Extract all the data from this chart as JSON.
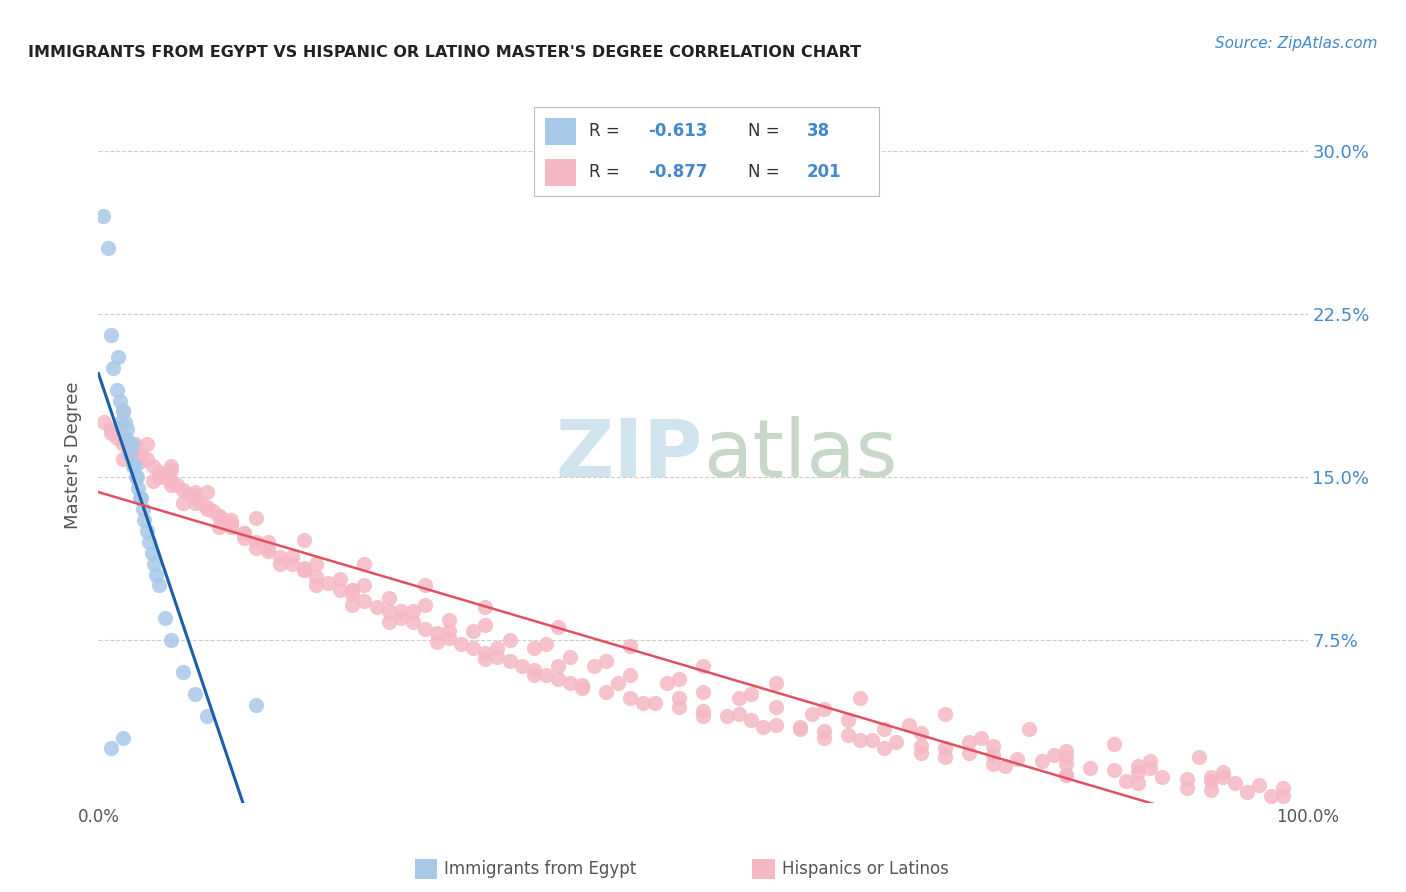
{
  "title": "IMMIGRANTS FROM EGYPT VS HISPANIC OR LATINO MASTER'S DEGREE CORRELATION CHART",
  "source": "Source: ZipAtlas.com",
  "ylabel": "Master's Degree",
  "xlim": [
    0.0,
    1.0
  ],
  "ylim": [
    0.0,
    0.32
  ],
  "color_blue": "#A8C8E8",
  "color_pink": "#F5B8C4",
  "color_blue_line": "#1A5FA8",
  "color_pink_line": "#E05060",
  "color_tick": "#4488CC",
  "background_color": "#FFFFFF",
  "grid_color": "#CCCCCC",
  "title_color": "#222222",
  "watermark_color": "#D0E4F0",
  "egypt_x": [
    0.004,
    0.008,
    0.01,
    0.012,
    0.015,
    0.016,
    0.018,
    0.019,
    0.02,
    0.022,
    0.023,
    0.024,
    0.025,
    0.026,
    0.028,
    0.029,
    0.03,
    0.031,
    0.032,
    0.033,
    0.034,
    0.035,
    0.037,
    0.038,
    0.04,
    0.042,
    0.044,
    0.046,
    0.048,
    0.05,
    0.055,
    0.06,
    0.07,
    0.08,
    0.09,
    0.01,
    0.02,
    0.13
  ],
  "egypt_y": [
    0.27,
    0.255,
    0.215,
    0.2,
    0.19,
    0.205,
    0.185,
    0.175,
    0.18,
    0.175,
    0.168,
    0.172,
    0.165,
    0.16,
    0.165,
    0.155,
    0.155,
    0.15,
    0.15,
    0.145,
    0.14,
    0.14,
    0.135,
    0.13,
    0.125,
    0.12,
    0.115,
    0.11,
    0.105,
    0.1,
    0.085,
    0.075,
    0.06,
    0.05,
    0.04,
    0.025,
    0.03,
    0.045
  ],
  "hispanic_x": [
    0.005,
    0.01,
    0.015,
    0.02,
    0.025,
    0.03,
    0.035,
    0.04,
    0.045,
    0.05,
    0.055,
    0.06,
    0.065,
    0.07,
    0.075,
    0.08,
    0.085,
    0.09,
    0.095,
    0.1,
    0.105,
    0.11,
    0.12,
    0.13,
    0.14,
    0.15,
    0.16,
    0.17,
    0.18,
    0.19,
    0.2,
    0.21,
    0.22,
    0.23,
    0.24,
    0.25,
    0.26,
    0.27,
    0.28,
    0.29,
    0.3,
    0.31,
    0.32,
    0.33,
    0.34,
    0.35,
    0.36,
    0.37,
    0.38,
    0.39,
    0.4,
    0.42,
    0.44,
    0.46,
    0.48,
    0.5,
    0.52,
    0.54,
    0.56,
    0.58,
    0.6,
    0.62,
    0.64,
    0.66,
    0.68,
    0.7,
    0.72,
    0.74,
    0.76,
    0.78,
    0.8,
    0.82,
    0.84,
    0.86,
    0.88,
    0.9,
    0.92,
    0.94,
    0.96,
    0.98,
    0.02,
    0.04,
    0.06,
    0.08,
    0.1,
    0.12,
    0.15,
    0.18,
    0.21,
    0.24,
    0.28,
    0.32,
    0.36,
    0.4,
    0.45,
    0.5,
    0.55,
    0.6,
    0.65,
    0.7,
    0.75,
    0.8,
    0.85,
    0.9,
    0.95,
    0.98,
    0.01,
    0.03,
    0.05,
    0.08,
    0.11,
    0.14,
    0.17,
    0.21,
    0.25,
    0.29,
    0.33,
    0.38,
    0.43,
    0.48,
    0.53,
    0.58,
    0.63,
    0.68,
    0.74,
    0.8,
    0.86,
    0.92,
    0.97,
    0.015,
    0.035,
    0.06,
    0.09,
    0.12,
    0.16,
    0.2,
    0.24,
    0.29,
    0.34,
    0.39,
    0.44,
    0.5,
    0.56,
    0.62,
    0.68,
    0.74,
    0.8,
    0.87,
    0.93,
    0.025,
    0.05,
    0.08,
    0.11,
    0.14,
    0.18,
    0.22,
    0.27,
    0.32,
    0.37,
    0.42,
    0.48,
    0.54,
    0.6,
    0.67,
    0.73,
    0.8,
    0.87,
    0.93,
    0.02,
    0.045,
    0.07,
    0.1,
    0.13,
    0.17,
    0.21,
    0.26,
    0.31,
    0.36,
    0.41,
    0.47,
    0.53,
    0.59,
    0.65,
    0.72,
    0.79,
    0.86,
    0.92,
    0.03,
    0.06,
    0.09,
    0.13,
    0.17,
    0.22,
    0.27,
    0.32,
    0.38,
    0.44,
    0.5,
    0.56,
    0.63,
    0.7,
    0.77,
    0.84,
    0.91
  ],
  "hispanic_y": [
    0.175,
    0.17,
    0.17,
    0.165,
    0.165,
    0.16,
    0.16,
    0.158,
    0.155,
    0.152,
    0.15,
    0.148,
    0.146,
    0.144,
    0.142,
    0.14,
    0.138,
    0.136,
    0.134,
    0.132,
    0.13,
    0.128,
    0.124,
    0.12,
    0.116,
    0.113,
    0.11,
    0.107,
    0.104,
    0.101,
    0.098,
    0.096,
    0.093,
    0.09,
    0.088,
    0.085,
    0.083,
    0.08,
    0.078,
    0.076,
    0.073,
    0.071,
    0.069,
    0.067,
    0.065,
    0.063,
    0.061,
    0.059,
    0.057,
    0.055,
    0.054,
    0.051,
    0.048,
    0.046,
    0.044,
    0.042,
    0.04,
    0.038,
    0.036,
    0.034,
    0.033,
    0.031,
    0.029,
    0.028,
    0.026,
    0.025,
    0.023,
    0.022,
    0.02,
    0.019,
    0.018,
    0.016,
    0.015,
    0.014,
    0.012,
    0.011,
    0.01,
    0.009,
    0.008,
    0.007,
    0.18,
    0.165,
    0.155,
    0.143,
    0.132,
    0.122,
    0.11,
    0.1,
    0.091,
    0.083,
    0.074,
    0.066,
    0.059,
    0.053,
    0.046,
    0.04,
    0.035,
    0.03,
    0.025,
    0.021,
    0.017,
    0.013,
    0.01,
    0.007,
    0.005,
    0.003,
    0.172,
    0.16,
    0.15,
    0.138,
    0.127,
    0.117,
    0.108,
    0.098,
    0.088,
    0.079,
    0.071,
    0.063,
    0.055,
    0.048,
    0.041,
    0.035,
    0.029,
    0.023,
    0.018,
    0.013,
    0.009,
    0.006,
    0.003,
    0.168,
    0.157,
    0.146,
    0.135,
    0.124,
    0.113,
    0.103,
    0.094,
    0.084,
    0.075,
    0.067,
    0.059,
    0.051,
    0.044,
    0.038,
    0.032,
    0.026,
    0.021,
    0.016,
    0.012,
    0.162,
    0.151,
    0.141,
    0.13,
    0.12,
    0.11,
    0.1,
    0.091,
    0.082,
    0.073,
    0.065,
    0.057,
    0.05,
    0.043,
    0.036,
    0.03,
    0.024,
    0.019,
    0.014,
    0.158,
    0.148,
    0.138,
    0.127,
    0.117,
    0.107,
    0.098,
    0.088,
    0.079,
    0.071,
    0.063,
    0.055,
    0.048,
    0.041,
    0.034,
    0.028,
    0.022,
    0.017,
    0.012,
    0.165,
    0.153,
    0.143,
    0.131,
    0.121,
    0.11,
    0.1,
    0.09,
    0.081,
    0.072,
    0.063,
    0.055,
    0.048,
    0.041,
    0.034,
    0.027,
    0.021
  ]
}
